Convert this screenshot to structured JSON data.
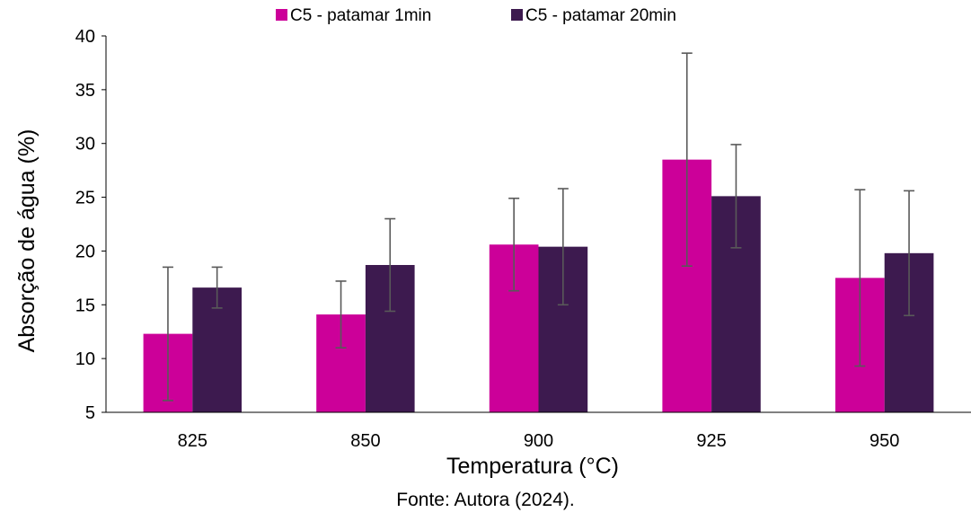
{
  "chart_data": {
    "type": "bar",
    "categories": [
      "825",
      "850",
      "900",
      "925",
      "950"
    ],
    "series": [
      {
        "name": "C5 - patamar 1min",
        "color": "#CC0099",
        "values": [
          12.3,
          14.1,
          20.6,
          28.5,
          17.5
        ],
        "error": [
          6.2,
          3.1,
          4.3,
          9.9,
          8.2
        ]
      },
      {
        "name": "C5 - patamar 20min",
        "color": "#3D1A4F",
        "values": [
          16.6,
          18.7,
          20.4,
          25.1,
          19.8
        ],
        "error": [
          1.9,
          4.3,
          5.4,
          4.8,
          5.8
        ]
      }
    ],
    "xlabel": "Temperatura (°C)",
    "ylabel": "Absorção de água (%)",
    "ylim": [
      5,
      40
    ],
    "yticks": [
      "5",
      "10",
      "15",
      "20",
      "25",
      "30",
      "35",
      "40"
    ],
    "grid": false,
    "legend": "top-center"
  },
  "source": "Fonte: Autora (2024)."
}
